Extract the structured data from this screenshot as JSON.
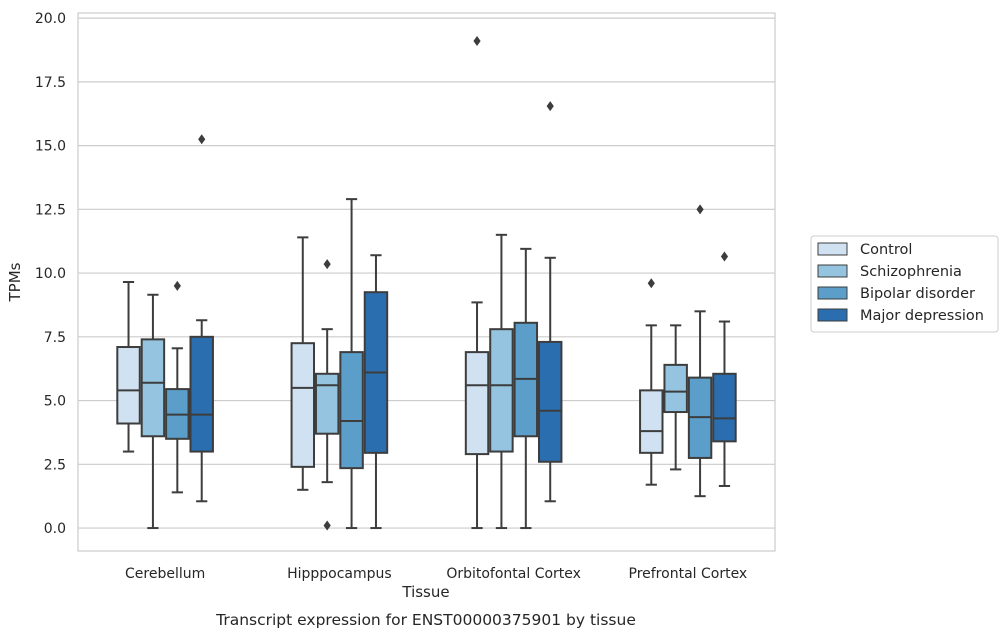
{
  "chart_data": {
    "type": "box",
    "title": "",
    "caption": "Transcript expression for ENST00000375901 by tissue",
    "xlabel": "Tissue",
    "ylabel": "TPMs",
    "ylim": [
      -0.9,
      20.2
    ],
    "yticks": [
      "0.0",
      "2.5",
      "5.0",
      "7.5",
      "10.0",
      "12.5",
      "15.0",
      "17.5",
      "20.0"
    ],
    "grid": "horizontal",
    "legend_position": "right",
    "categories": [
      "Cerebellum",
      "Hipppocampus",
      "Orbitofontal Cortex",
      "Prefrontal Cortex"
    ],
    "series": [
      {
        "name": "Control",
        "color": "#d0e1f2",
        "boxes": [
          {
            "min": 3.0,
            "q1": 4.1,
            "median": 5.4,
            "q3": 7.1,
            "max": 9.65,
            "outliers": []
          },
          {
            "min": 1.5,
            "q1": 2.4,
            "median": 5.5,
            "q3": 7.25,
            "max": 11.4,
            "outliers": []
          },
          {
            "min": 0.0,
            "q1": 2.9,
            "median": 5.6,
            "q3": 6.9,
            "max": 8.85,
            "outliers": [
              19.1
            ]
          },
          {
            "min": 1.7,
            "q1": 2.95,
            "median": 3.8,
            "q3": 5.4,
            "max": 7.95,
            "outliers": [
              9.6
            ]
          }
        ]
      },
      {
        "name": "Schizophrenia",
        "color": "#94c4df",
        "boxes": [
          {
            "min": 0.0,
            "q1": 3.6,
            "median": 5.7,
            "q3": 7.4,
            "max": 9.15,
            "outliers": []
          },
          {
            "min": 1.8,
            "q1": 3.7,
            "median": 5.6,
            "q3": 6.05,
            "max": 7.8,
            "outliers": [
              10.35,
              0.1
            ]
          },
          {
            "min": 0.0,
            "q1": 3.0,
            "median": 5.6,
            "q3": 7.8,
            "max": 11.5,
            "outliers": []
          },
          {
            "min": 2.3,
            "q1": 4.55,
            "median": 5.35,
            "q3": 6.4,
            "max": 7.95,
            "outliers": []
          }
        ]
      },
      {
        "name": "Bipolar disorder",
        "color": "#5a9ec9",
        "boxes": [
          {
            "min": 1.4,
            "q1": 3.5,
            "median": 4.45,
            "q3": 5.45,
            "max": 7.05,
            "outliers": [
              9.5
            ]
          },
          {
            "min": 0.0,
            "q1": 2.35,
            "median": 4.2,
            "q3": 6.9,
            "max": 12.9,
            "outliers": []
          },
          {
            "min": 0.0,
            "q1": 3.6,
            "median": 5.85,
            "q3": 8.05,
            "max": 10.95,
            "outliers": []
          },
          {
            "min": 1.25,
            "q1": 2.75,
            "median": 4.35,
            "q3": 5.9,
            "max": 8.5,
            "outliers": [
              12.5
            ]
          }
        ]
      },
      {
        "name": "Major depression",
        "color": "#2a6eb0",
        "boxes": [
          {
            "min": 1.05,
            "q1": 3.0,
            "median": 4.45,
            "q3": 7.5,
            "max": 8.15,
            "outliers": [
              15.25
            ]
          },
          {
            "min": 0.0,
            "q1": 2.95,
            "median": 6.1,
            "q3": 9.25,
            "max": 10.7,
            "outliers": []
          },
          {
            "min": 1.05,
            "q1": 2.6,
            "median": 4.6,
            "q3": 7.3,
            "max": 10.6,
            "outliers": [
              16.55
            ]
          },
          {
            "min": 1.65,
            "q1": 3.4,
            "median": 4.3,
            "q3": 6.05,
            "max": 8.1,
            "outliers": [
              10.65
            ]
          }
        ]
      }
    ]
  }
}
